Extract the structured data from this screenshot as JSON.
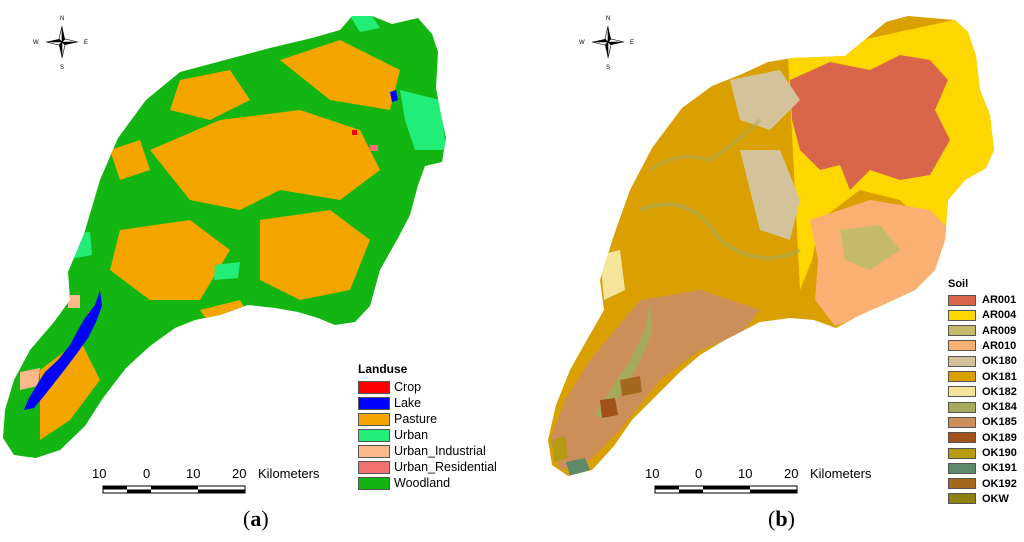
{
  "panel_a": {
    "label_open": "(",
    "label_letter": "a",
    "label_close": ")",
    "legend": {
      "title": "Landuse",
      "items": [
        {
          "label": "Crop",
          "color": "#ff0000"
        },
        {
          "label": "Lake",
          "color": "#0000ff"
        },
        {
          "label": "Pasture",
          "color": "#f5a500"
        },
        {
          "label": "Urban",
          "color": "#22ee77"
        },
        {
          "label": "Urban_Industrial",
          "color": "#fbb88a"
        },
        {
          "label": "Urban_Residential",
          "color": "#f07070"
        },
        {
          "label": "Woodland",
          "color": "#12b512"
        }
      ]
    },
    "scale": {
      "ticks": [
        "10",
        "0",
        "10",
        "20"
      ],
      "unit": "Kilometers"
    },
    "compass": {
      "n": "N",
      "s": "S",
      "e": "E",
      "w": "W"
    }
  },
  "panel_b": {
    "label_open": "(",
    "label_letter": "b",
    "label_close": ")",
    "legend": {
      "title": "Soil",
      "items": [
        {
          "label": "AR001",
          "color": "#d9654a"
        },
        {
          "label": "AR004",
          "color": "#ffd700"
        },
        {
          "label": "AR009",
          "color": "#c4ba6a"
        },
        {
          "label": "AR010",
          "color": "#f9b072"
        },
        {
          "label": "OK180",
          "color": "#d4c39a"
        },
        {
          "label": "OK181",
          "color": "#d9a000"
        },
        {
          "label": "OK182",
          "color": "#f5e59a"
        },
        {
          "label": "OK184",
          "color": "#a5aa5a"
        },
        {
          "label": "OK185",
          "color": "#cc8f5a"
        },
        {
          "label": "OK189",
          "color": "#a0521a"
        },
        {
          "label": "OK190",
          "color": "#b59b12"
        },
        {
          "label": "OK191",
          "color": "#5e8a6a"
        },
        {
          "label": "OK192",
          "color": "#a5681f"
        },
        {
          "label": "OKW",
          "color": "#8c8012"
        }
      ]
    },
    "scale": {
      "ticks": [
        "10",
        "0",
        "10",
        "20"
      ],
      "unit": "Kilometers"
    },
    "compass": {
      "n": "N",
      "s": "S",
      "e": "E",
      "w": "W"
    }
  }
}
